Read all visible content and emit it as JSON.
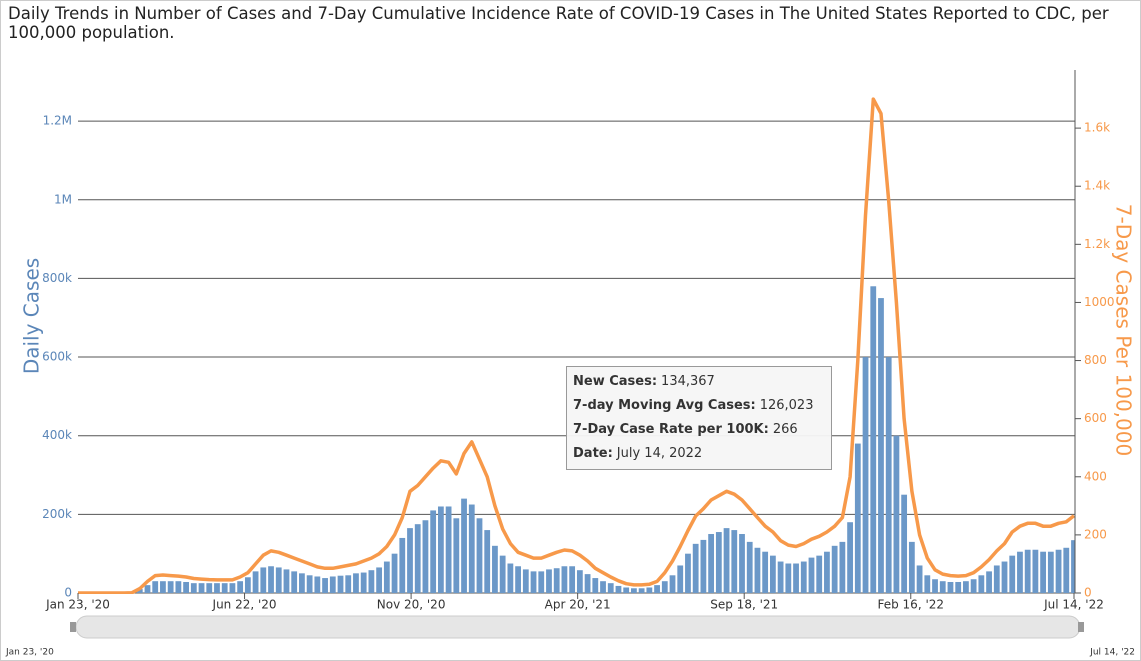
{
  "chart_data": {
    "type": "bar",
    "title": "Daily Trends in Number of Cases and 7-Day Cumulative Incidence Rate of COVID-19 Cases in The United States Reported to CDC, per 100,000 population.",
    "y_label": "Daily Cases",
    "y2_label": "7-Day Cases Per 100,000",
    "xlim": [
      0,
      903
    ],
    "xticks": [
      {
        "value": 0,
        "label": "Jan 23, '20"
      },
      {
        "value": 151,
        "label": "Jun 22, '20"
      },
      {
        "value": 302,
        "label": "Nov 20, '20"
      },
      {
        "value": 453,
        "label": "Apr 20, '21"
      },
      {
        "value": 604,
        "label": "Sep 18, '21"
      },
      {
        "value": 755,
        "label": "Feb 16, '22"
      },
      {
        "value": 903,
        "label": "Jul 14, '22"
      }
    ],
    "ylim": [
      0,
      1330000
    ],
    "yticks": [
      0,
      {
        "value": 200000,
        "label": "200k"
      },
      {
        "value": 400000,
        "label": "400k"
      },
      {
        "value": 600000,
        "label": "600k"
      },
      {
        "value": 800000,
        "label": "800k"
      },
      {
        "value": 1000000,
        "label": "1M"
      },
      {
        "value": 1200000,
        "label": "1.2M"
      }
    ],
    "y2lim": [
      0,
      1800
    ],
    "y2ticks": [
      0,
      200,
      400,
      600,
      800,
      1000,
      {
        "value": 1200,
        "label": "1.2k"
      },
      {
        "value": 1400,
        "label": "1.4k"
      },
      {
        "value": 1600,
        "label": "1.6k"
      }
    ],
    "grid": true,
    "x": [
      0,
      7,
      14,
      21,
      28,
      35,
      42,
      49,
      56,
      63,
      70,
      77,
      84,
      91,
      98,
      105,
      112,
      119,
      126,
      133,
      140,
      147,
      154,
      161,
      168,
      175,
      182,
      189,
      196,
      203,
      210,
      217,
      224,
      231,
      238,
      245,
      252,
      259,
      266,
      273,
      280,
      287,
      294,
      301,
      308,
      315,
      322,
      329,
      336,
      343,
      350,
      357,
      364,
      371,
      378,
      385,
      392,
      399,
      406,
      413,
      420,
      427,
      434,
      441,
      448,
      455,
      462,
      469,
      476,
      483,
      490,
      497,
      504,
      511,
      518,
      525,
      532,
      539,
      546,
      553,
      560,
      567,
      574,
      581,
      588,
      595,
      602,
      609,
      616,
      623,
      630,
      637,
      644,
      651,
      658,
      665,
      672,
      679,
      686,
      693,
      700,
      707,
      714,
      721,
      728,
      735,
      742,
      749,
      756,
      763,
      770,
      777,
      784,
      791,
      798,
      805,
      812,
      819,
      826,
      833,
      840,
      847,
      854,
      861,
      868,
      875,
      882,
      889,
      896,
      903
    ],
    "series": [
      {
        "name": "New Cases",
        "type": "bar",
        "color": "#6b98c8",
        "values": [
          0,
          0,
          0,
          0,
          0,
          0,
          0,
          1000,
          10000,
          20000,
          30000,
          30000,
          30000,
          30000,
          28000,
          25000,
          25000,
          25000,
          25000,
          25000,
          25000,
          30000,
          40000,
          55000,
          65000,
          68000,
          65000,
          60000,
          55000,
          50000,
          45000,
          42000,
          38000,
          42000,
          44000,
          45000,
          50000,
          52000,
          58000,
          65000,
          80000,
          100000,
          140000,
          165000,
          175000,
          185000,
          210000,
          220000,
          220000,
          190000,
          240000,
          225000,
          190000,
          160000,
          120000,
          95000,
          75000,
          68000,
          60000,
          55000,
          55000,
          60000,
          63000,
          68000,
          68000,
          58000,
          48000,
          38000,
          30000,
          25000,
          18000,
          14000,
          12000,
          12000,
          14000,
          20000,
          30000,
          45000,
          70000,
          100000,
          125000,
          135000,
          150000,
          155000,
          165000,
          160000,
          150000,
          130000,
          115000,
          105000,
          95000,
          80000,
          75000,
          75000,
          80000,
          90000,
          95000,
          105000,
          120000,
          130000,
          180000,
          380000,
          600000,
          780000,
          750000,
          600000,
          400000,
          250000,
          130000,
          70000,
          45000,
          35000,
          30000,
          28000,
          28000,
          30000,
          35000,
          45000,
          55000,
          70000,
          80000,
          95000,
          105000,
          110000,
          110000,
          105000,
          105000,
          110000,
          115000,
          134367
        ]
      },
      {
        "name": "7-Day Case Rate per 100K",
        "type": "line",
        "axis": "y2",
        "color": "#f7994a",
        "values": [
          0,
          0,
          0,
          0,
          0,
          0,
          0,
          1,
          15,
          40,
          60,
          62,
          60,
          58,
          55,
          50,
          48,
          46,
          45,
          45,
          45,
          55,
          70,
          100,
          130,
          145,
          140,
          130,
          120,
          110,
          100,
          90,
          85,
          85,
          90,
          95,
          100,
          110,
          120,
          135,
          160,
          200,
          260,
          350,
          370,
          400,
          430,
          455,
          450,
          410,
          480,
          520,
          460,
          400,
          300,
          220,
          170,
          140,
          130,
          120,
          120,
          130,
          140,
          148,
          145,
          130,
          110,
          85,
          70,
          55,
          42,
          32,
          28,
          28,
          30,
          40,
          70,
          110,
          160,
          215,
          265,
          290,
          320,
          335,
          350,
          340,
          320,
          290,
          260,
          230,
          210,
          180,
          165,
          160,
          170,
          185,
          195,
          210,
          230,
          260,
          400,
          800,
          1300,
          1700,
          1650,
          1350,
          1000,
          600,
          350,
          200,
          120,
          80,
          65,
          60,
          58,
          60,
          70,
          90,
          115,
          145,
          170,
          210,
          230,
          240,
          240,
          230,
          230,
          240,
          245,
          266
        ]
      }
    ],
    "tooltip": [
      {
        "label": "New Cases:",
        "value": "134,367"
      },
      {
        "label": "7-day Moving Avg Cases:",
        "value": "126,023"
      },
      {
        "label": "7-Day Case Rate per 100K:",
        "value": "266"
      },
      {
        "label": "Date:",
        "value": "July 14, 2022"
      }
    ],
    "navigator": {
      "start": "Jan 23, '20",
      "end": "Jul 14, '22"
    }
  }
}
